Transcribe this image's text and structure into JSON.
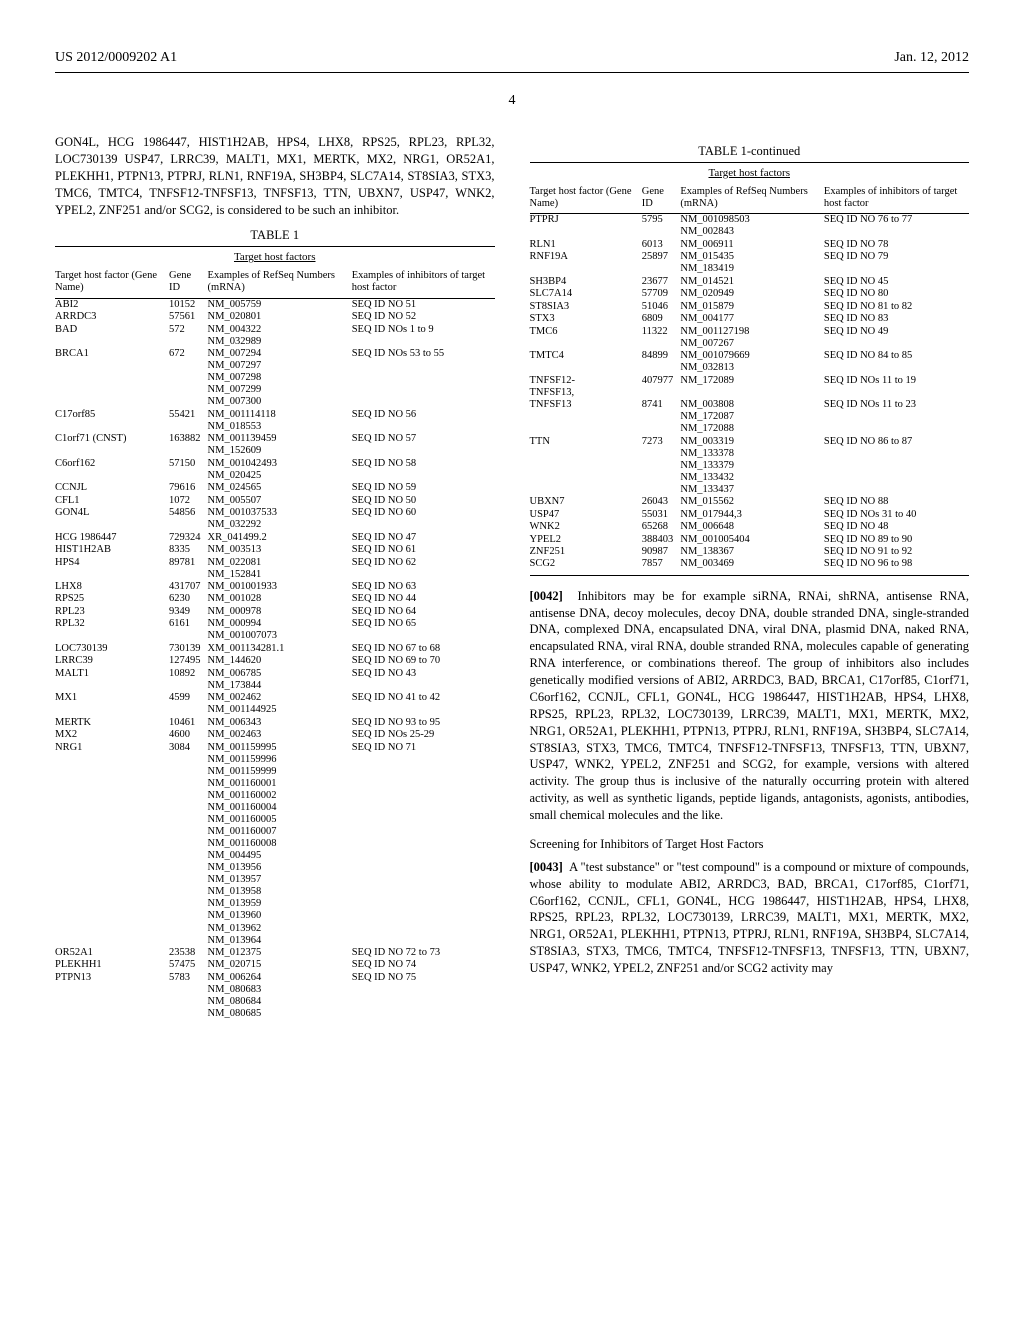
{
  "header": {
    "left": "US 2012/0009202 A1",
    "right": "Jan. 12, 2012"
  },
  "page_number": "4",
  "intro_para": "GON4L, HCG 1986447, HIST1H2AB, HPS4, LHX8, RPS25, RPL23, RPL32, LOC730139 USP47, LRRC39, MALT1, MX1, MERTK, MX2, NRG1, OR52A1, PLEKHH1, PTPN13, PTPRJ, RLN1, RNF19A, SH3BP4, SLC7A14, ST8SIA3, STX3, TMC6, TMTC4, TNFSF12-TNFSF13, TNFSF13, TTN, UBXN7, USP47, WNK2, YPEL2, ZNF251 and/or SCG2, is considered to be such an inhibitor.",
  "table": {
    "title_left": "TABLE 1",
    "title_right": "TABLE 1-continued",
    "subcaption": "Target host factors",
    "columns": {
      "c1": "Target host factor\n(Gene Name)",
      "c2": "Gene\nID",
      "c3": "Examples of\nRefSeq Numbers\n(mRNA)",
      "c4": "Examples\nof inhibitors of target\nhost factor"
    }
  },
  "left_rows": [
    {
      "c1": "ABI2",
      "c2": "10152",
      "c3": "NM_005759",
      "c4": "SEQ ID NO 51"
    },
    {
      "c1": "ARRDC3",
      "c2": "57561",
      "c3": "NM_020801",
      "c4": "SEQ ID NO 52"
    },
    {
      "c1": "BAD",
      "c2": "572",
      "c3": "NM_004322\nNM_032989",
      "c4": "SEQ ID NOs 1 to 9"
    },
    {
      "c1": "BRCA1",
      "c2": "672",
      "c3": "NM_007294\nNM_007297\nNM_007298\nNM_007299\nNM_007300",
      "c4": "SEQ ID NOs 53 to 55"
    },
    {
      "c1": "C17orf85",
      "c2": "55421",
      "c3": "NM_001114118\nNM_018553",
      "c4": "SEQ ID NO 56"
    },
    {
      "c1": "C1orf71 (CNST)",
      "c2": "163882",
      "c3": "NM_001139459\nNM_152609",
      "c4": "SEQ ID NO 57"
    },
    {
      "c1": "C6orf162",
      "c2": "57150",
      "c3": "NM_001042493\nNM_020425",
      "c4": "SEQ ID NO 58"
    },
    {
      "c1": "CCNJL",
      "c2": "79616",
      "c3": "NM_024565",
      "c4": "SEQ ID NO 59"
    },
    {
      "c1": "CFL1",
      "c2": "1072",
      "c3": "NM_005507",
      "c4": "SEQ ID NO 50"
    },
    {
      "c1": "GON4L",
      "c2": "54856",
      "c3": "NM_001037533\nNM_032292",
      "c4": "SEQ ID NO 60"
    },
    {
      "c1": "HCG 1986447",
      "c2": "729324",
      "c3": "XR_041499.2",
      "c4": "SEQ ID NO 47"
    },
    {
      "c1": "HIST1H2AB",
      "c2": "8335",
      "c3": "NM_003513",
      "c4": "SEQ ID NO 61"
    },
    {
      "c1": "HPS4",
      "c2": "89781",
      "c3": "NM_022081\nNM_152841",
      "c4": "SEQ ID NO 62"
    },
    {
      "c1": "LHX8",
      "c2": "431707",
      "c3": "NM_001001933",
      "c4": "SEQ ID NO 63"
    },
    {
      "c1": "RPS25",
      "c2": "6230",
      "c3": "NM_001028",
      "c4": "SEQ ID NO 44"
    },
    {
      "c1": "RPL23",
      "c2": "9349",
      "c3": "NM_000978",
      "c4": "SEQ ID NO 64"
    },
    {
      "c1": "RPL32",
      "c2": "6161",
      "c3": "NM_000994\nNM_001007073",
      "c4": "SEQ ID NO 65"
    },
    {
      "c1": "LOC730139",
      "c2": "730139",
      "c3": "XM_001134281.1",
      "c4": "SEQ ID NO 67 to 68"
    },
    {
      "c1": "LRRC39",
      "c2": "127495",
      "c3": "NM_144620",
      "c4": "SEQ ID NO 69 to 70"
    },
    {
      "c1": "MALT1",
      "c2": "10892",
      "c3": "NM_006785\nNM_173844",
      "c4": "SEQ ID NO 43"
    },
    {
      "c1": "MX1",
      "c2": "4599",
      "c3": "NM_002462\nNM_001144925",
      "c4": "SEQ ID NO 41 to 42"
    },
    {
      "c1": "MERTK",
      "c2": "10461",
      "c3": "NM_006343",
      "c4": "SEQ ID NO 93 to 95"
    },
    {
      "c1": "MX2",
      "c2": "4600",
      "c3": "NM_002463",
      "c4": "SEQ ID NOs 25-29"
    },
    {
      "c1": "NRG1",
      "c2": "3084",
      "c3": "NM_001159995\nNM_001159996\nNM_001159999\nNM_001160001\nNM_001160002\nNM_001160004\nNM_001160005\nNM_001160007\nNM_001160008\nNM_004495\nNM_013956\nNM_013957\nNM_013958\nNM_013959\nNM_013960\nNM_013962\nNM_013964",
      "c4": "SEQ ID NO 71"
    },
    {
      "c1": "OR52A1",
      "c2": "23538",
      "c3": "NM_012375",
      "c4": "SEQ ID NO 72 to 73"
    },
    {
      "c1": "PLEKHH1",
      "c2": "57475",
      "c3": "NM_020715",
      "c4": "SEQ ID NO 74"
    },
    {
      "c1": "PTPN13",
      "c2": "5783",
      "c3": "NM_006264\nNM_080683\nNM_080684\nNM_080685",
      "c4": "SEQ ID NO 75"
    }
  ],
  "right_rows": [
    {
      "c1": "PTPRJ",
      "c2": "5795",
      "c3": "NM_001098503\nNM_002843",
      "c4": "SEQ ID NO 76 to 77"
    },
    {
      "c1": "RLN1",
      "c2": "6013",
      "c3": "NM_006911",
      "c4": "SEQ ID NO 78"
    },
    {
      "c1": "RNF19A",
      "c2": "25897",
      "c3": "NM_015435\nNM_183419",
      "c4": "SEQ ID NO 79"
    },
    {
      "c1": "SH3BP4",
      "c2": "23677",
      "c3": "NM_014521",
      "c4": "SEQ ID NO 45"
    },
    {
      "c1": "SLC7A14",
      "c2": "57709",
      "c3": "NM_020949",
      "c4": "SEQ ID NO 80"
    },
    {
      "c1": "ST8SIA3",
      "c2": "51046",
      "c3": "NM_015879",
      "c4": "SEQ ID NO 81 to 82"
    },
    {
      "c1": "STX3",
      "c2": "6809",
      "c3": "NM_004177",
      "c4": "SEQ ID NO 83"
    },
    {
      "c1": "TMC6",
      "c2": "11322",
      "c3": "NM_001127198\nNM_007267",
      "c4": "SEQ ID NO 49"
    },
    {
      "c1": "TMTC4",
      "c2": "84899",
      "c3": "NM_001079669\nNM_032813",
      "c4": "SEQ ID NO 84 to 85"
    },
    {
      "c1": "TNFSF12-\nTNFSF13,",
      "c2": "407977",
      "c3": "NM_172089",
      "c4": "SEQ ID NOs 11 to 19"
    },
    {
      "c1": "TNFSF13",
      "c2": "8741",
      "c3": "NM_003808\nNM_172087\nNM_172088",
      "c4": "SEQ ID NOs 11 to 23"
    },
    {
      "c1": "TTN",
      "c2": "7273",
      "c3": "NM_003319\nNM_133378\nNM_133379\nNM_133432\nNM_133437",
      "c4": "SEQ ID NO 86 to 87"
    },
    {
      "c1": "UBXN7",
      "c2": "26043",
      "c3": "NM_015562",
      "c4": "SEQ ID NO 88"
    },
    {
      "c1": "USP47",
      "c2": "55031",
      "c3": "NM_017944,3",
      "c4": "SEQ ID NOs 31 to 40"
    },
    {
      "c1": "WNK2",
      "c2": "65268",
      "c3": "NM_006648",
      "c4": "SEQ ID NO 48"
    },
    {
      "c1": "YPEL2",
      "c2": "388403",
      "c3": "NM_001005404",
      "c4": "SEQ ID NO 89 to 90"
    },
    {
      "c1": "ZNF251",
      "c2": "90987",
      "c3": "NM_138367",
      "c4": "SEQ ID NO 91 to 92"
    },
    {
      "c1": "SCG2",
      "c2": "7857",
      "c3": "NM_003469",
      "c4": "SEQ ID NO 96 to 98"
    }
  ],
  "para42_num": "[0042]",
  "para42": "Inhibitors may be for example siRNA, RNAi, shRNA, antisense RNA, antisense DNA, decoy molecules, decoy DNA, double stranded DNA, single-stranded DNA, complexed DNA, encapsulated DNA, viral DNA, plasmid DNA, naked RNA, encapsulated RNA, viral RNA, double stranded RNA, molecules capable of generating RNA interference, or combinations thereof. The group of inhibitors also includes genetically modified versions of ABI2, ARRDC3, BAD, BRCA1, C17orf85, C1orf71, C6orf162, CCNJL, CFL1, GON4L, HCG 1986447, HIST1H2AB, HPS4, LHX8, RPS25, RPL23, RPL32, LOC730139, LRRC39, MALT1, MX1, MERTK, MX2, NRG1, OR52A1, PLEKHH1, PTPN13, PTPRJ, RLN1, RNF19A, SH3BP4, SLC7A14, ST8SIA3, STX3, TMC6, TMTC4, TNFSF12-TNFSF13, TNFSF13, TTN, UBXN7, USP47, WNK2, YPEL2, ZNF251 and SCG2, for example, versions with altered activity. The group thus is inclusive of the naturally occurring protein with altered activity, as well as synthetic ligands, peptide ligands, antagonists, agonists, antibodies, small chemical molecules and the like.",
  "screening_heading": "Screening for Inhibitors of Target Host Factors",
  "para43_num": "[0043]",
  "para43": "A \"test substance\" or \"test compound\" is a compound or mixture of compounds, whose ability to modulate ABI2, ARRDC3, BAD, BRCA1, C17orf85, C1orf71, C6orf162, CCNJL, CFL1, GON4L, HCG 1986447, HIST1H2AB, HPS4, LHX8, RPS25, RPL23, RPL32, LOC730139, LRRC39, MALT1, MX1, MERTK, MX2, NRG1, OR52A1, PLEKHH1, PTPN13, PTPRJ, RLN1, RNF19A, SH3BP4, SLC7A14, ST8SIA3, STX3, TMC6, TMTC4, TNFSF12-TNFSF13, TNFSF13, TTN, UBXN7, USP47, WNK2, YPEL2, ZNF251 and/or SCG2 activity may"
}
